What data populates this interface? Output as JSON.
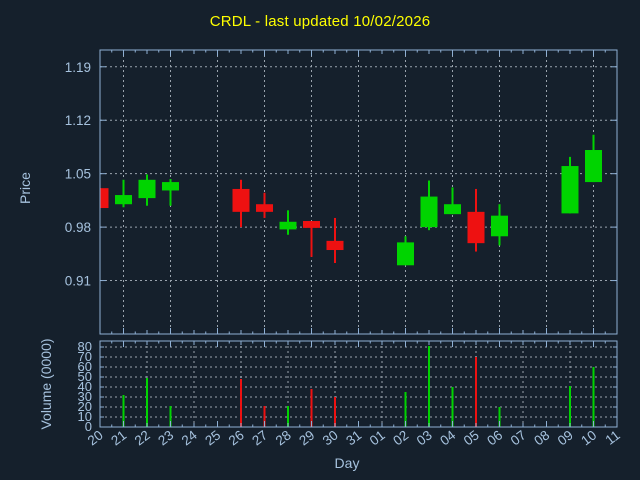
{
  "chart_data": {
    "type": "candlestick",
    "title": "CRDL - last updated 10/02/2026",
    "x_axis": {
      "label": "Day",
      "categories": [
        "20",
        "21",
        "22",
        "23",
        "24",
        "25",
        "26",
        "27",
        "28",
        "29",
        "30",
        "31",
        "01",
        "02",
        "03",
        "04",
        "05",
        "06",
        "07",
        "08",
        "09",
        "10",
        "11"
      ],
      "grid": "dashed",
      "tick_label_rotation_deg": -37
    },
    "price_axis": {
      "label": "Price",
      "ticks": [
        0.91,
        0.98,
        1.05,
        1.12,
        1.19
      ],
      "ylim": [
        0.84,
        1.212
      ],
      "grid": "dashed"
    },
    "volume_axis": {
      "label": "Volume (0000)",
      "ticks": [
        0,
        10,
        20,
        30,
        40,
        50,
        60,
        70,
        80
      ],
      "ylim": [
        0,
        86
      ],
      "grid": "dashed"
    },
    "colors": {
      "background": "#15202c",
      "up": "#00d400",
      "down": "#ee1111",
      "axis": "#8fb0d4",
      "grid": "#9aa4ae",
      "tick_label": "#a6c2de",
      "title": "#ffff00"
    },
    "legend": "none",
    "candles": [
      {
        "day": "20",
        "open": 1.031,
        "high": 1.031,
        "low": 1.005,
        "close": 1.005,
        "volume": null
      },
      {
        "day": "21",
        "open": 1.01,
        "high": 1.042,
        "low": 1.006,
        "close": 1.022,
        "volume": 32
      },
      {
        "day": "22",
        "open": 1.018,
        "high": 1.049,
        "low": 1.008,
        "close": 1.042,
        "volume": 49
      },
      {
        "day": "23",
        "open": 1.028,
        "high": 1.043,
        "low": 1.008,
        "close": 1.039,
        "volume": 21
      },
      {
        "day": "26",
        "open": 1.03,
        "high": 1.042,
        "low": 0.98,
        "close": 1.0,
        "volume": 48
      },
      {
        "day": "27",
        "open": 1.01,
        "high": 1.025,
        "low": 0.992,
        "close": 1.0,
        "volume": 21
      },
      {
        "day": "28",
        "open": 0.977,
        "high": 1.002,
        "low": 0.97,
        "close": 0.987,
        "volume": 21
      },
      {
        "day": "29",
        "open": 0.988,
        "high": 0.988,
        "low": 0.941,
        "close": 0.979,
        "volume": 38
      },
      {
        "day": "30",
        "open": 0.962,
        "high": 0.992,
        "low": 0.933,
        "close": 0.95,
        "volume": 30
      },
      {
        "day": "02",
        "open": 0.93,
        "high": 0.968,
        "low": 0.93,
        "close": 0.96,
        "volume": 35
      },
      {
        "day": "03",
        "open": 0.98,
        "high": 1.041,
        "low": 0.976,
        "close": 1.02,
        "volume": 81
      },
      {
        "day": "04",
        "open": 0.997,
        "high": 1.032,
        "low": 0.997,
        "close": 1.01,
        "volume": 40
      },
      {
        "day": "05",
        "open": 1.0,
        "high": 1.03,
        "low": 0.948,
        "close": 0.959,
        "volume": 70
      },
      {
        "day": "06",
        "open": 0.968,
        "high": 1.01,
        "low": 0.956,
        "close": 0.995,
        "volume": 20
      },
      {
        "day": "09",
        "open": 0.998,
        "high": 1.072,
        "low": 0.998,
        "close": 1.06,
        "volume": 41
      },
      {
        "day": "10",
        "open": 1.039,
        "high": 1.101,
        "low": 1.039,
        "close": 1.081,
        "volume": 60
      }
    ]
  }
}
